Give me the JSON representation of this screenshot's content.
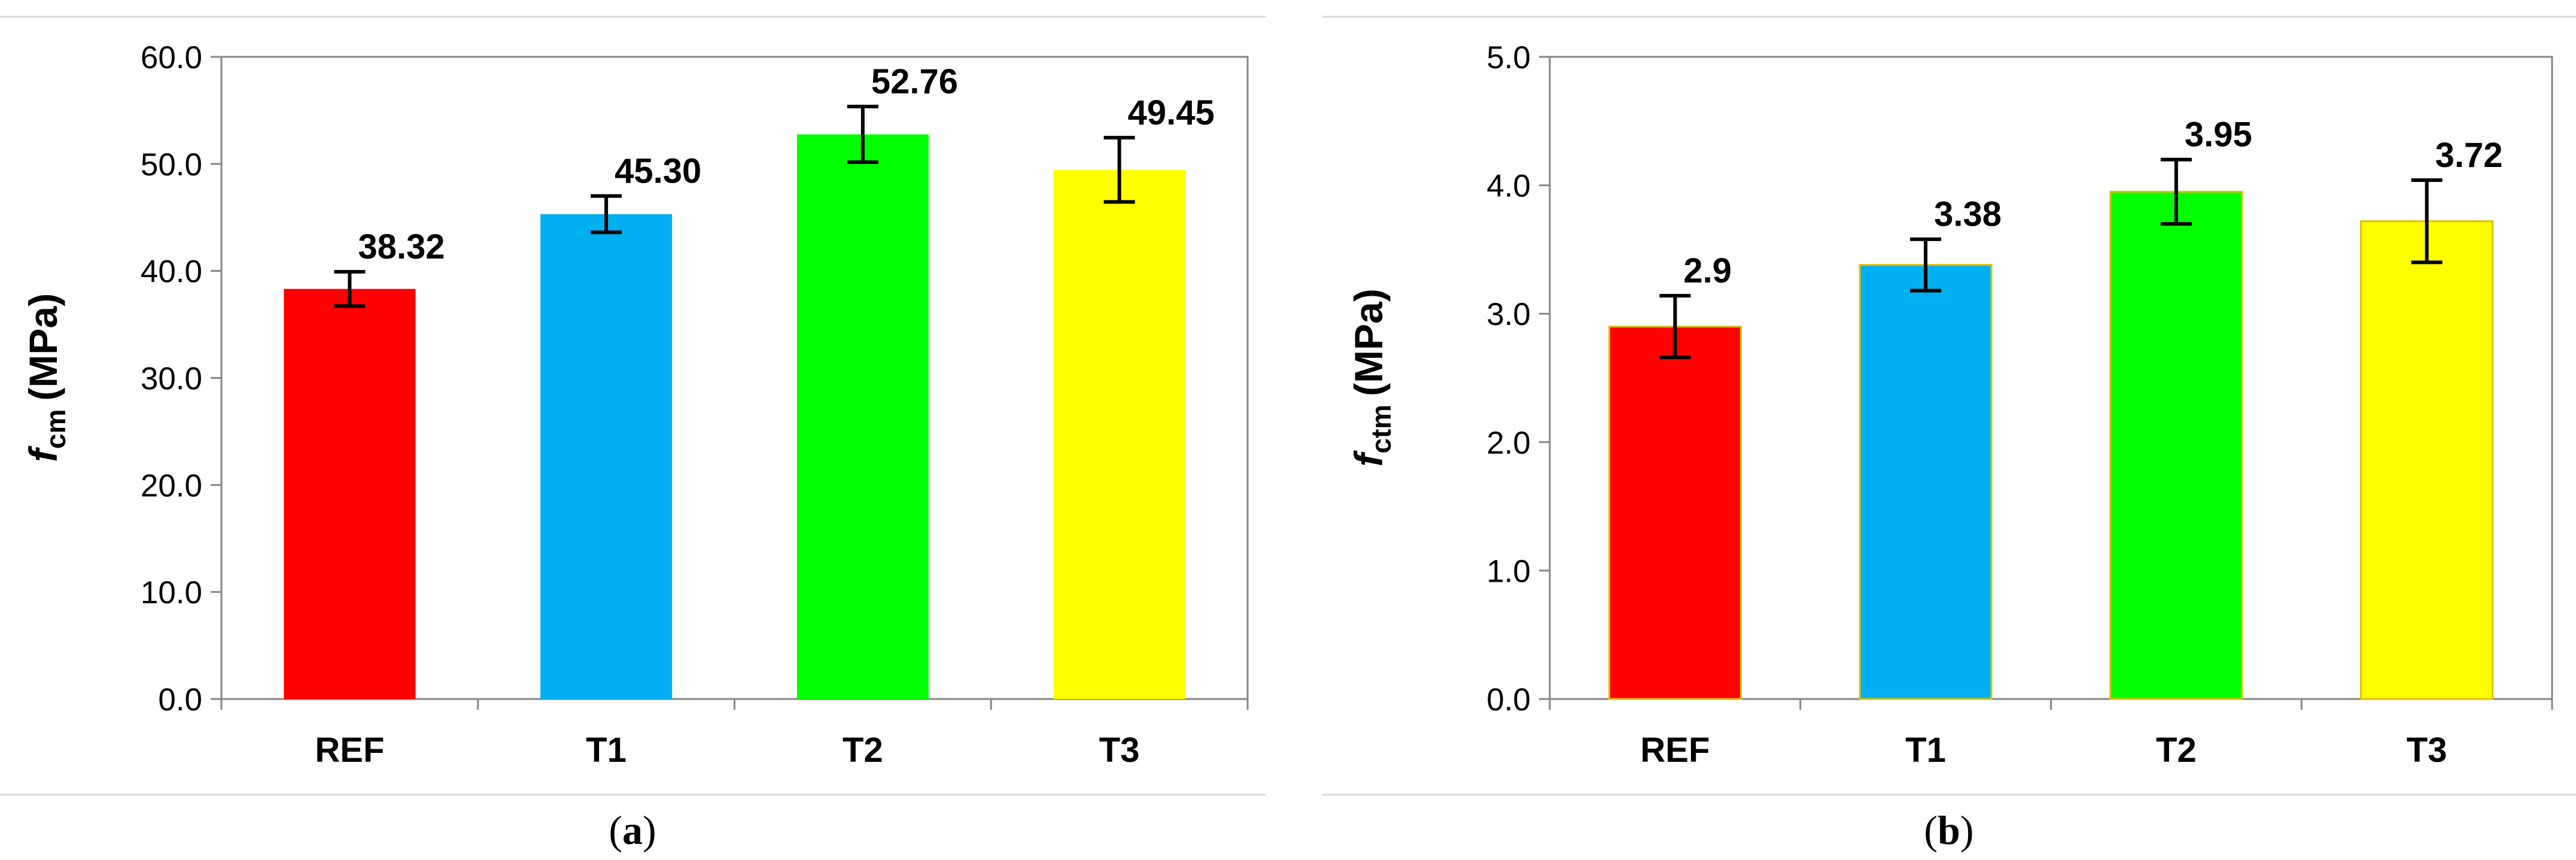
{
  "chart_data": [
    {
      "type": "bar",
      "panel": "(a)",
      "categories": [
        "REF",
        "T1",
        "T2",
        "T3"
      ],
      "values": [
        38.32,
        45.3,
        52.76,
        49.45
      ],
      "data_labels": [
        "38.32",
        "45.30",
        "52.76",
        "49.45"
      ],
      "error": [
        1.6,
        1.7,
        2.6,
        3.0
      ],
      "colors": [
        "#ff0000",
        "#00b0f0",
        "#00ff00",
        "#ffff00"
      ],
      "ylabel": {
        "symbol": "f",
        "subscript": "cm",
        "unit": "(MPa)"
      },
      "ylim": [
        0,
        60
      ],
      "yticks": [
        "0.0",
        "10.0",
        "20.0",
        "30.0",
        "40.0",
        "50.0",
        "60.0"
      ],
      "grid": false
    },
    {
      "type": "bar",
      "panel": "(b)",
      "categories": [
        "REF",
        "T1",
        "T2",
        "T3"
      ],
      "values": [
        2.9,
        3.38,
        3.95,
        3.72
      ],
      "data_labels": [
        "2.9",
        "3.38",
        "3.95",
        "3.72"
      ],
      "error": [
        0.24,
        0.2,
        0.25,
        0.32
      ],
      "colors": [
        "#ff0000",
        "#00b0f0",
        "#00ff00",
        "#ffff00"
      ],
      "ylabel": {
        "symbol": "f",
        "subscript": "ctm",
        "unit": "(MPa)"
      },
      "ylim": [
        0,
        5
      ],
      "yticks": [
        "0.0",
        "1.0",
        "2.0",
        "3.0",
        "4.0",
        "5.0"
      ],
      "grid": false
    }
  ],
  "panel_labels": {
    "a": {
      "open": "(",
      "letter": "a",
      "close": ")"
    },
    "b": {
      "open": "(",
      "letter": "b",
      "close": ")"
    }
  }
}
